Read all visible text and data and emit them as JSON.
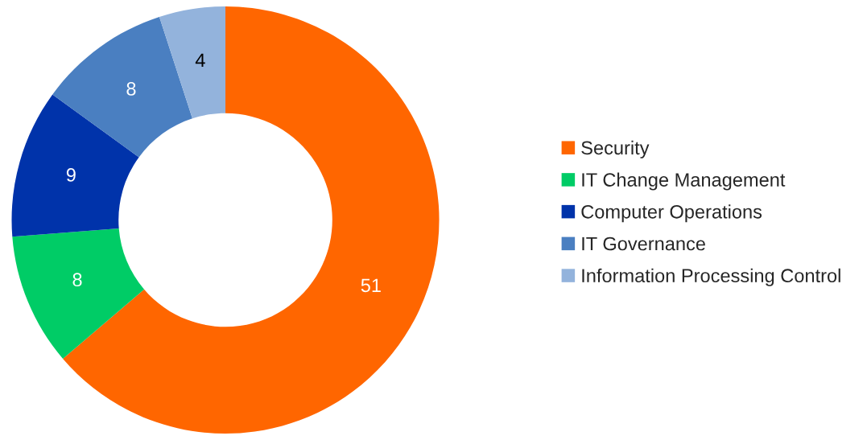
{
  "chart_data": {
    "type": "donut",
    "categories": [
      "Security",
      "IT Change Management",
      "Computer Operations",
      "IT Governance",
      "Information Processing Control"
    ],
    "values": [
      51,
      8,
      9,
      8,
      4
    ],
    "colors": [
      "#ff6600",
      "#00cc66",
      "#0033aa",
      "#4a7fc1",
      "#93b3dc"
    ],
    "data_labels": true,
    "legend": "right"
  }
}
